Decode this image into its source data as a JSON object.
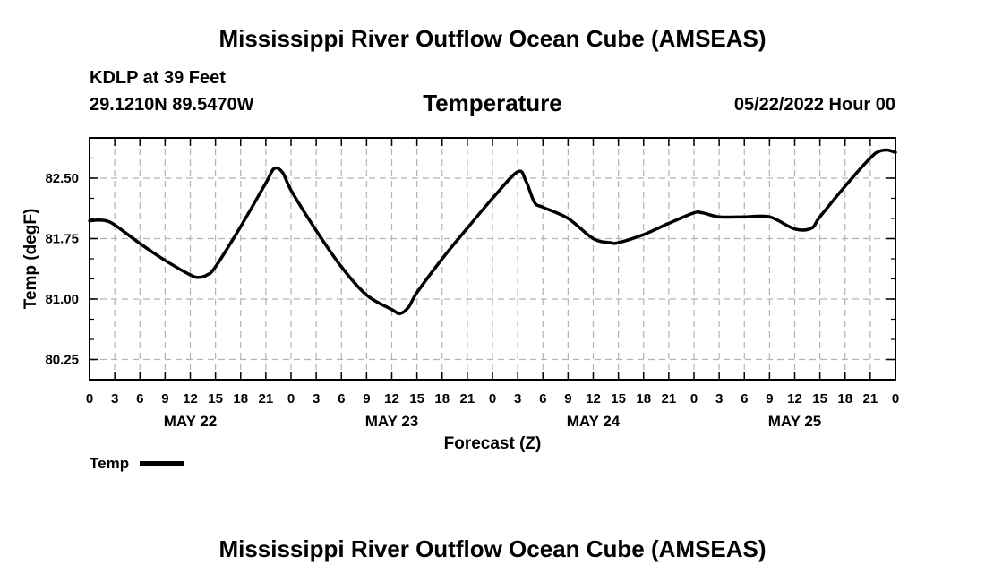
{
  "header": {
    "title": "Mississippi River Outflow Ocean Cube (AMSEAS)",
    "station": "KDLP at 39 Feet",
    "coordinates": "29.1210N  89.5470W",
    "run_time": "05/22/2022 Hour 00"
  },
  "footer": {
    "title": "Mississippi River Outflow Ocean Cube (AMSEAS)"
  },
  "legend": {
    "label": "Temp"
  },
  "chart_data": {
    "type": "line",
    "title": "Temperature",
    "xlabel": "Forecast (Z)",
    "ylabel": "Temp (degF)",
    "xlim": [
      0,
      96
    ],
    "ylim": [
      80.0,
      83.0
    ],
    "y_ticks": [
      80.25,
      81.0,
      81.75,
      82.5
    ],
    "y_tick_labels": [
      "80.25",
      "81.00",
      "81.75",
      "82.50"
    ],
    "x_ticks": [
      0,
      3,
      6,
      9,
      12,
      15,
      18,
      21,
      24,
      27,
      30,
      33,
      36,
      39,
      42,
      45,
      48,
      51,
      54,
      57,
      60,
      63,
      66,
      69,
      72,
      75,
      78,
      81,
      84,
      87,
      90,
      93,
      96
    ],
    "x_tick_labels": [
      "0",
      "3",
      "6",
      "9",
      "12",
      "15",
      "18",
      "21",
      "0",
      "3",
      "6",
      "9",
      "12",
      "15",
      "18",
      "21",
      "0",
      "3",
      "6",
      "9",
      "12",
      "15",
      "18",
      "21",
      "0",
      "3",
      "6",
      "9",
      "12",
      "15",
      "18",
      "21",
      "0"
    ],
    "date_labels": [
      {
        "label": "MAY 22",
        "hour": 12
      },
      {
        "label": "MAY 23",
        "hour": 36
      },
      {
        "label": "MAY 24",
        "hour": 60
      },
      {
        "label": "MAY 25",
        "hour": 84
      }
    ],
    "grid": true,
    "series": [
      {
        "name": "Temp",
        "color": "#000000",
        "x": [
          0,
          1,
          2,
          3,
          6,
          9,
          12,
          13,
          14,
          15,
          18,
          21,
          22,
          23,
          24,
          27,
          30,
          33,
          36,
          37,
          38,
          39,
          42,
          45,
          48,
          51,
          52,
          53,
          54,
          57,
          60,
          62,
          63,
          66,
          69,
          72,
          73,
          75,
          78,
          81,
          84,
          86,
          87,
          90,
          93,
          94,
          95,
          96
        ],
        "values": [
          81.97,
          81.98,
          81.97,
          81.92,
          81.69,
          81.48,
          81.3,
          81.27,
          81.3,
          81.4,
          81.9,
          82.44,
          82.62,
          82.57,
          82.35,
          81.85,
          81.4,
          81.05,
          80.87,
          80.82,
          80.9,
          81.08,
          81.5,
          81.88,
          82.25,
          82.58,
          82.46,
          82.2,
          82.14,
          82.0,
          81.75,
          81.7,
          81.7,
          81.8,
          81.94,
          82.07,
          82.07,
          82.02,
          82.02,
          82.02,
          81.87,
          81.88,
          82.02,
          82.4,
          82.75,
          82.83,
          82.85,
          82.82
        ]
      }
    ]
  }
}
